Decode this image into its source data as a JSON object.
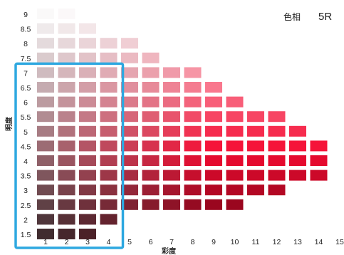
{
  "hue_label": "色相",
  "hue_value": "5R",
  "value_axis_label": "明度",
  "chroma_axis_label": "彩度",
  "value_levels": [
    "9",
    "8.5",
    "8",
    "7.5",
    "7",
    "6.5",
    "6",
    "5.5",
    "5",
    "4.5",
    "4",
    "3.5",
    "3",
    "2.5",
    "2",
    "1.5"
  ],
  "chroma_levels": [
    "1",
    "2",
    "3",
    "4",
    "5",
    "6",
    "7",
    "8",
    "9",
    "10",
    "11",
    "12",
    "13",
    "14",
    "15"
  ],
  "max_chroma_per_value": {
    "9": 2,
    "8.5": 3,
    "8": 5,
    "7.5": 6,
    "7": 8,
    "6.5": 9,
    "6": 10,
    "5.5": 12,
    "5": 13,
    "4.5": 14,
    "4": 14,
    "3.5": 14,
    "3": 12,
    "2.5": 10,
    "2": 4,
    "1.5": 3
  },
  "selection_highlight": {
    "color": "#2ea8e0",
    "value_range": [
      "7",
      "1.5"
    ],
    "chroma_range": [
      "1",
      "4"
    ]
  },
  "colors": {
    "hue_red": "#d81e3c",
    "text": "#222222"
  }
}
